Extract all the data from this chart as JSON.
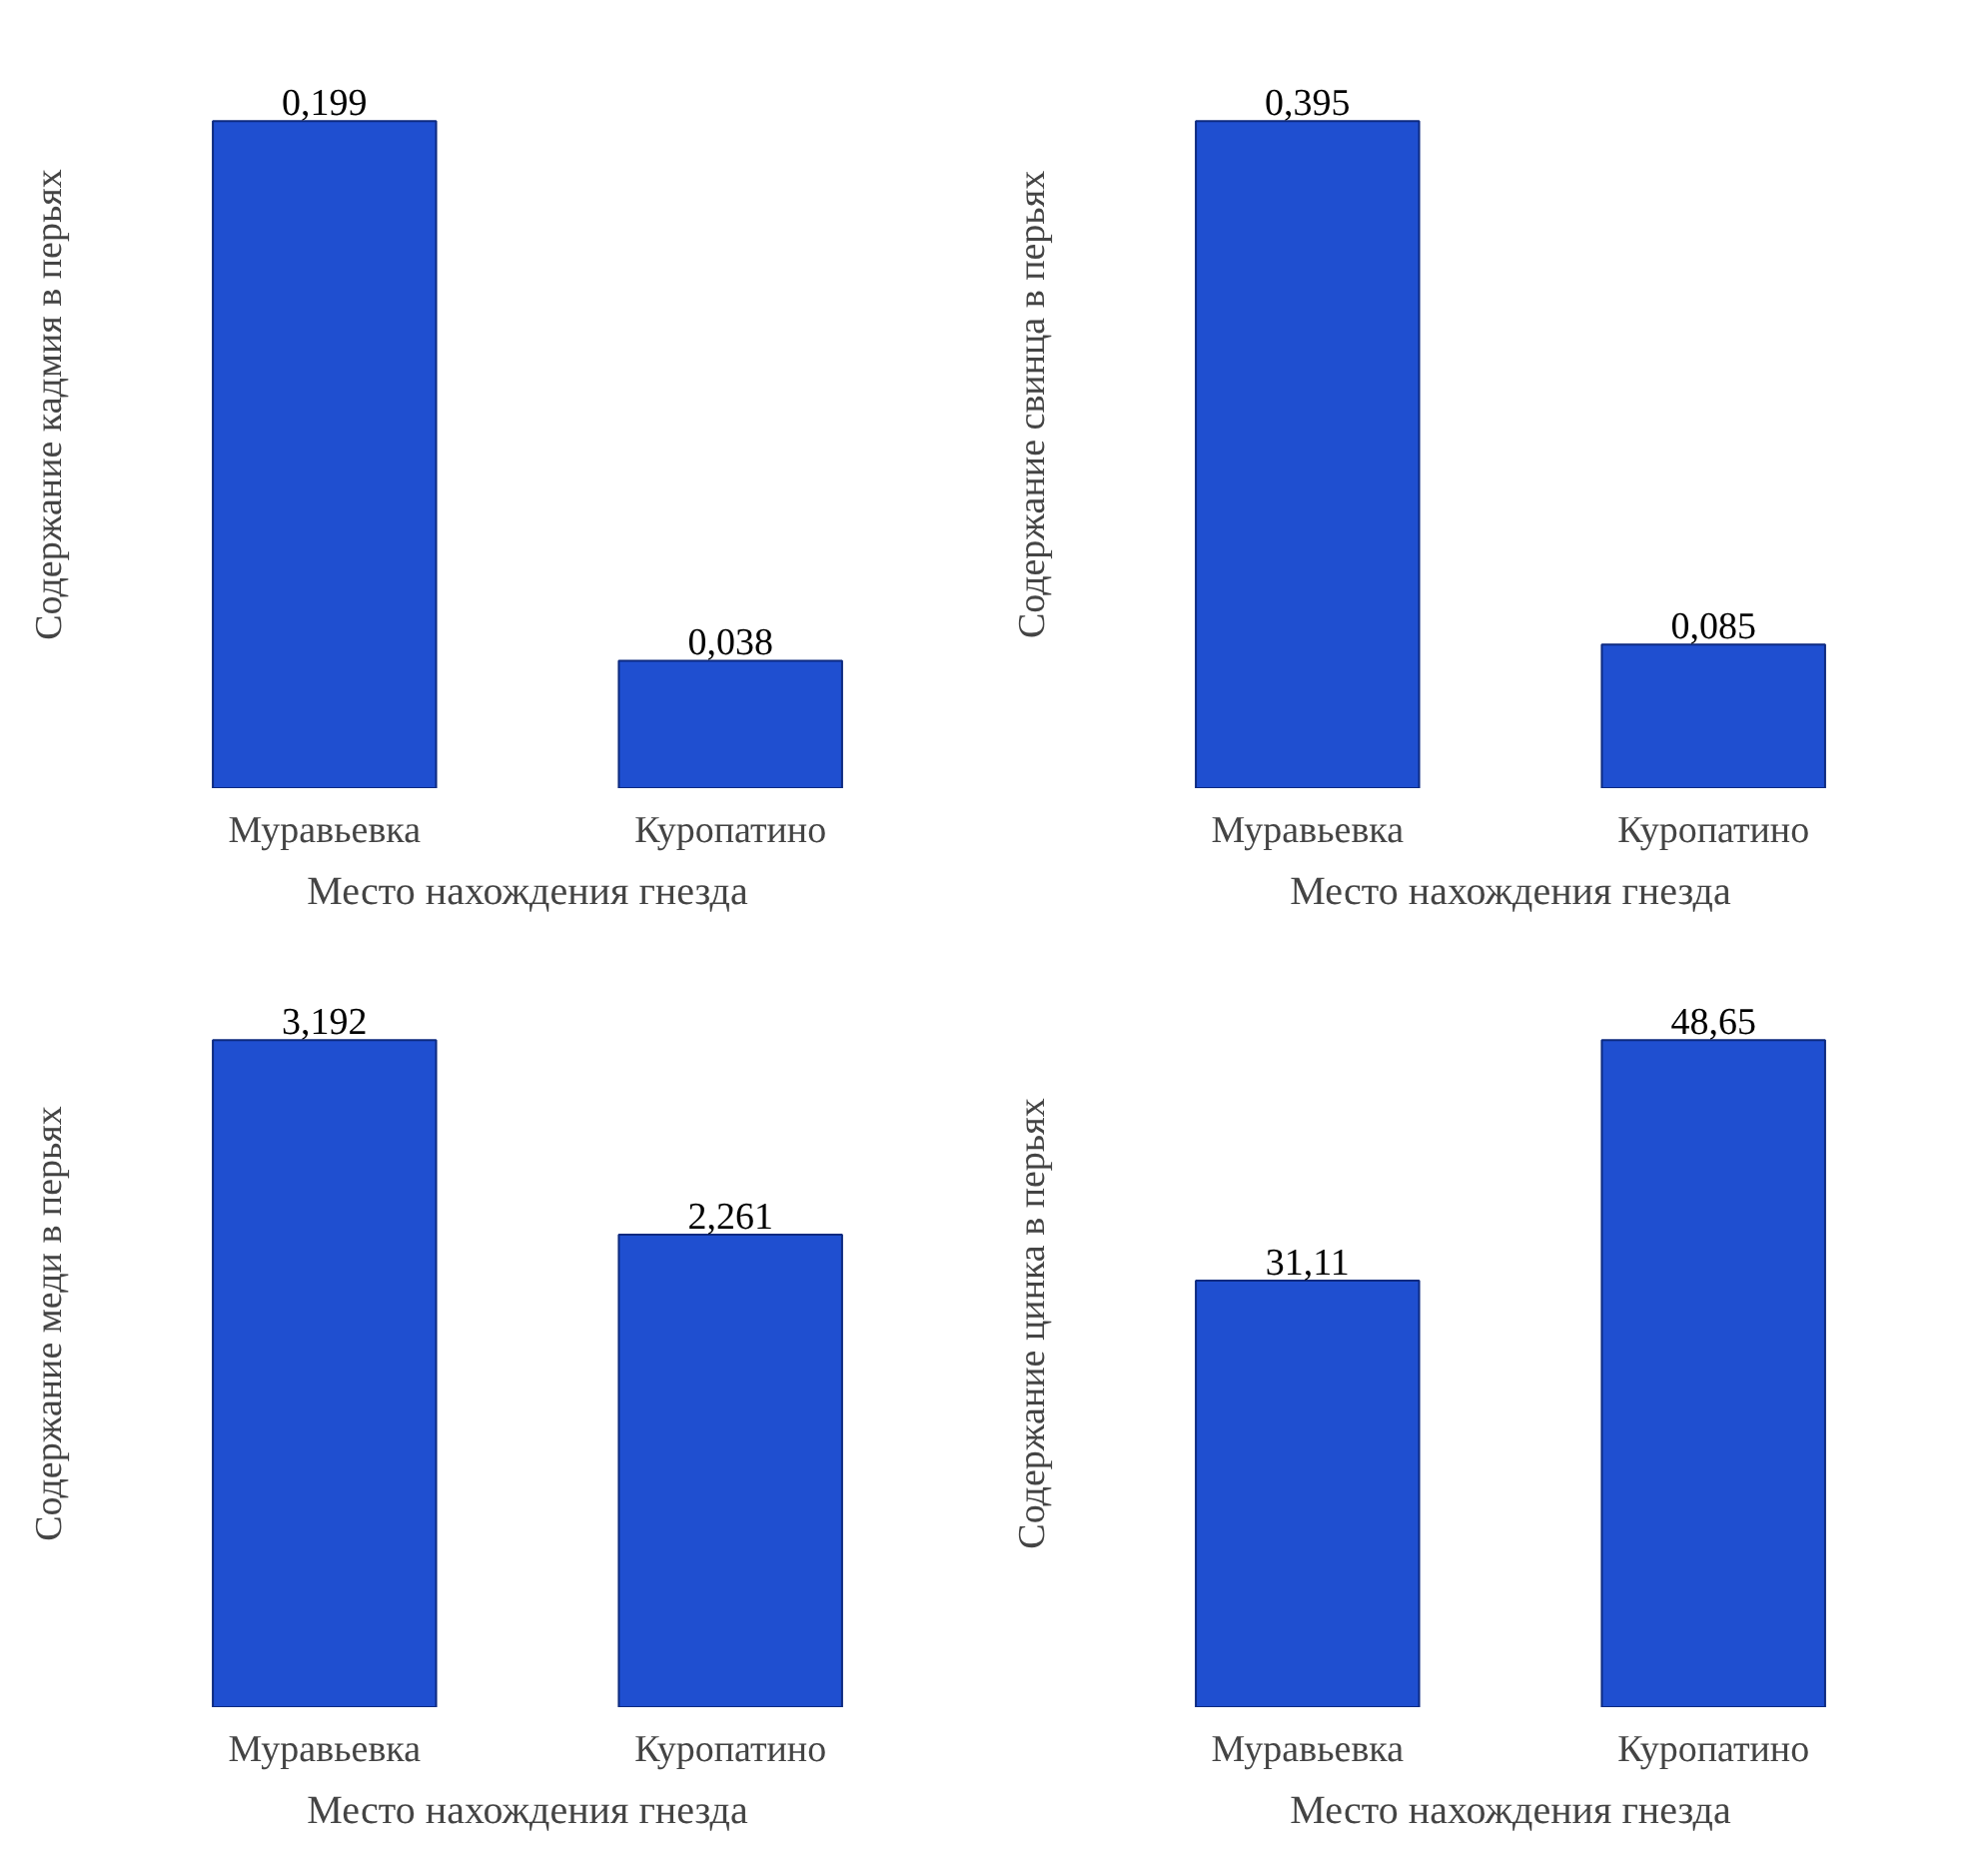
{
  "chart_data": [
    {
      "type": "bar",
      "xlabel": "Место нахождения гнезда",
      "ylabel": "Содержание кадмия в перьях",
      "categories": [
        "Муравьевка",
        "Куропатино"
      ],
      "values": [
        0.199,
        0.038
      ],
      "value_labels": [
        "0,199",
        "0,038"
      ],
      "color": "#1f4fd0"
    },
    {
      "type": "bar",
      "xlabel": "Место нахождения гнезда",
      "ylabel": "Содержание свинца в перьях",
      "categories": [
        "Муравьевка",
        "Куропатино"
      ],
      "values": [
        0.395,
        0.085
      ],
      "value_labels": [
        "0,395",
        "0,085"
      ],
      "color": "#1f4fd0"
    },
    {
      "type": "bar",
      "xlabel": "Место нахождения гнезда",
      "ylabel": "Содержание меди в перьях",
      "categories": [
        "Муравьевка",
        "Куропатино"
      ],
      "values": [
        3.192,
        2.261
      ],
      "value_labels": [
        "3,192",
        "2,261"
      ],
      "color": "#1f4fd0"
    },
    {
      "type": "bar",
      "xlabel": "Место нахождения гнезда",
      "ylabel": "Содержание цинка в перьях",
      "categories": [
        "Муравьевка",
        "Куропатино"
      ],
      "values": [
        31.11,
        48.65
      ],
      "value_labels": [
        "31,11",
        "48,65"
      ],
      "color": "#1f4fd0"
    }
  ]
}
